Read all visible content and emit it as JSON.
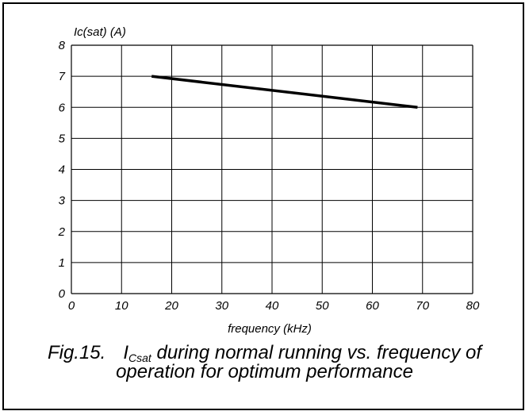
{
  "chart_data": {
    "type": "line",
    "ylabel": "Ic(sat) (A)",
    "xlabel": "frequency (kHz)",
    "xlim": [
      0,
      80
    ],
    "ylim": [
      0,
      8
    ],
    "xticks": [
      "0",
      "10",
      "20",
      "30",
      "40",
      "50",
      "60",
      "70",
      "80"
    ],
    "yticks": [
      "0",
      "1",
      "2",
      "3",
      "4",
      "5",
      "6",
      "7",
      "8"
    ],
    "grid": true,
    "series": [
      {
        "x": [
          16,
          69
        ],
        "y": [
          7.0,
          6.0
        ]
      }
    ],
    "caption": {
      "fig": "Fig.15.",
      "symbol": "I",
      "subscript": "Csat",
      "line1_rest": " during normal running vs. frequency of",
      "line2": "operation for optimum performance"
    }
  }
}
